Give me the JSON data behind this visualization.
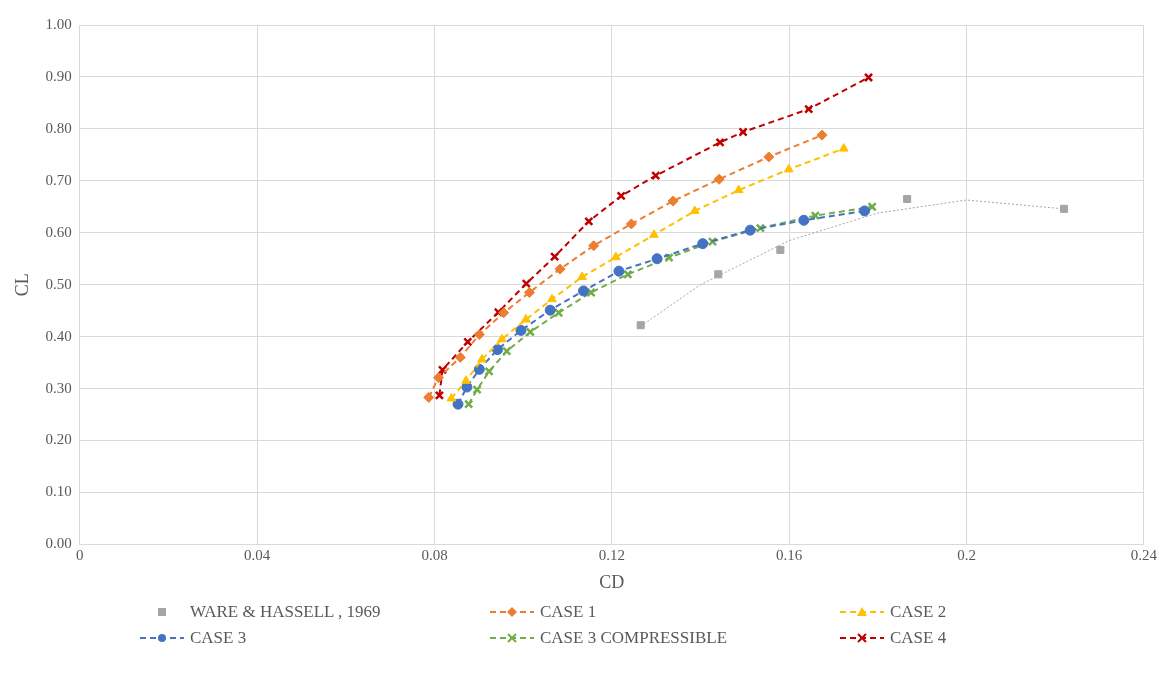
{
  "chart_data": {
    "type": "line",
    "xlabel": "CD",
    "ylabel": "CL",
    "grid": true,
    "legend": "bottom",
    "xlim": [
      0,
      0.24
    ],
    "xticks": [
      0,
      0.04,
      0.08,
      0.12,
      0.16,
      0.2,
      0.24
    ],
    "ylim": [
      0,
      1
    ],
    "yticks": [
      {
        "value": 0,
        "label": "0.00"
      },
      {
        "value": 0.1,
        "label": "0.10"
      },
      {
        "value": 0.2,
        "label": "0.20"
      },
      {
        "value": 0.3,
        "label": "0.30"
      },
      {
        "value": 0.4,
        "label": "0.40"
      },
      {
        "value": 0.5,
        "label": "0.50"
      },
      {
        "value": 0.6,
        "label": "0.60"
      },
      {
        "value": 0.7,
        "label": "0.70"
      },
      {
        "value": 0.8,
        "label": "0.80"
      },
      {
        "value": 0.9,
        "label": "0.90"
      },
      {
        "value": 1,
        "label": "1.00"
      }
    ],
    "series": [
      {
        "type": "scatter",
        "name": "WARE & HASSELL , 1969",
        "color": "#a5a5a5",
        "marker": "square",
        "x": [
          0.1265,
          0.144,
          0.158,
          0.1866,
          0.222
        ],
        "values": [
          0.422,
          0.52,
          0.567,
          0.665,
          0.646
        ]
      },
      {
        "type": "line",
        "name": "CASE 1",
        "color": "#ed7d31",
        "marker": "diamond",
        "line_style": "dashed",
        "x": [
          0.0787,
          0.0809,
          0.0858,
          0.0901,
          0.0956,
          0.1014,
          0.1083,
          0.1159,
          0.1244,
          0.1338,
          0.1442,
          0.1554,
          0.1674
        ],
        "values": [
          0.283,
          0.321,
          0.36,
          0.404,
          0.446,
          0.485,
          0.53,
          0.575,
          0.617,
          0.661,
          0.703,
          0.746,
          0.788
        ]
      },
      {
        "type": "line",
        "name": "CASE 2",
        "color": "#ffc000",
        "marker": "triangle",
        "line_style": "dashed",
        "x": [
          0.0838,
          0.0871,
          0.0907,
          0.0952,
          0.1006,
          0.1065,
          0.1133,
          0.1209,
          0.1295,
          0.1387,
          0.1486,
          0.1599,
          0.1723
        ],
        "values": [
          0.281,
          0.315,
          0.356,
          0.395,
          0.433,
          0.472,
          0.515,
          0.553,
          0.596,
          0.642,
          0.682,
          0.722,
          0.762
        ]
      },
      {
        "type": "line",
        "name": "CASE 3",
        "color": "#4472c4",
        "marker": "circle",
        "line_style": "dashed",
        "x": [
          0.0853,
          0.0873,
          0.0901,
          0.0942,
          0.0995,
          0.1061,
          0.1136,
          0.1216,
          0.1302,
          0.1405,
          0.1512,
          0.1633,
          0.177
        ],
        "values": [
          0.27,
          0.303,
          0.337,
          0.375,
          0.412,
          0.451,
          0.488,
          0.526,
          0.55,
          0.579,
          0.605,
          0.624,
          0.642
        ]
      },
      {
        "type": "line",
        "name": "CASE 3 COMPRESSIBLE",
        "color": "#70ad47",
        "marker": "cross",
        "line_style": "dashed",
        "x": [
          0.0877,
          0.0896,
          0.0923,
          0.0963,
          0.1016,
          0.108,
          0.1153,
          0.1236,
          0.1329,
          0.1427,
          0.1535,
          0.1659,
          0.1787
        ],
        "values": [
          0.27,
          0.298,
          0.333,
          0.372,
          0.409,
          0.446,
          0.485,
          0.52,
          0.552,
          0.583,
          0.609,
          0.633,
          0.65
        ]
      },
      {
        "type": "line",
        "name": "CASE 4",
        "color": "#c00000",
        "marker": "cross",
        "line_style": "dashed",
        "x": [
          0.0811,
          0.0818,
          0.0875,
          0.0944,
          0.1007,
          0.1071,
          0.1148,
          0.1221,
          0.1299,
          0.1444,
          0.1496,
          0.1644,
          0.1779
        ],
        "values": [
          0.287,
          0.336,
          0.39,
          0.447,
          0.502,
          0.554,
          0.622,
          0.671,
          0.71,
          0.774,
          0.794,
          0.838,
          0.899
        ]
      },
      {
        "type": "line",
        "color": "#a6a6a6",
        "marker": "none",
        "line_style": "dotted",
        "x": [
          0.1265,
          0.14,
          0.16,
          0.18,
          0.2,
          0.222
        ],
        "values": [
          0.42,
          0.5,
          0.585,
          0.638,
          0.663,
          0.646
        ]
      }
    ]
  }
}
